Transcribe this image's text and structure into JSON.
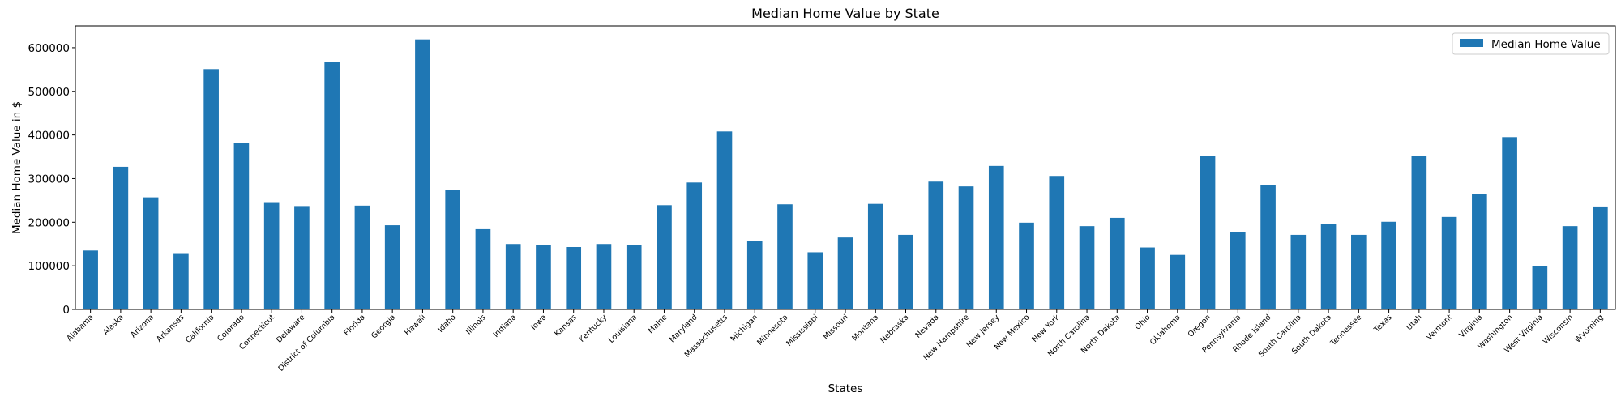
{
  "chart_data": {
    "type": "bar",
    "title": "Median Home Value by State",
    "xlabel": "States",
    "ylabel": "Median Home Value in $",
    "ylim": [
      0,
      650000
    ],
    "yticks": [
      0,
      100000,
      200000,
      300000,
      400000,
      500000,
      600000
    ],
    "ytick_labels": [
      "0",
      "100000",
      "200000",
      "300000",
      "400000",
      "500000",
      "600000"
    ],
    "grid": false,
    "legend_position": "top-right",
    "color": "#1f77b4",
    "categories": [
      "Alabama",
      "Alaska",
      "Arizona",
      "Arkansas",
      "California",
      "Colorado",
      "Connecticut",
      "Delaware",
      "District of Columbia",
      "Florida",
      "Georgia",
      "Hawaii",
      "Idaho",
      "Illinois",
      "Indiana",
      "Iowa",
      "Kansas",
      "Kentucky",
      "Louisiana",
      "Maine",
      "Maryland",
      "Massachusetts",
      "Michigan",
      "Minnesota",
      "Mississippi",
      "Missouri",
      "Montana",
      "Nebraska",
      "Nevada",
      "New Hampshire",
      "New Jersey",
      "New Mexico",
      "New York",
      "North Carolina",
      "North Dakota",
      "Ohio",
      "Oklahoma",
      "Oregon",
      "Pennsylvania",
      "Rhode Island",
      "South Carolina",
      "South Dakota",
      "Tennessee",
      "Texas",
      "Utah",
      "Vermont",
      "Virginia",
      "Washington",
      "West Virginia",
      "Wisconsin",
      "Wyoming"
    ],
    "series": [
      {
        "name": "Median Home Value",
        "values": [
          135000,
          327000,
          257000,
          129000,
          551000,
          382000,
          246000,
          237000,
          568000,
          238000,
          193000,
          619000,
          274000,
          184000,
          150000,
          148000,
          143000,
          150000,
          148000,
          239000,
          291000,
          408000,
          156000,
          241000,
          131000,
          165000,
          242000,
          171000,
          293000,
          282000,
          329000,
          199000,
          306000,
          191000,
          210000,
          142000,
          125000,
          351000,
          177000,
          285000,
          171000,
          195000,
          171000,
          201000,
          351000,
          212000,
          265000,
          395000,
          100000,
          191000,
          236000
        ]
      }
    ]
  }
}
